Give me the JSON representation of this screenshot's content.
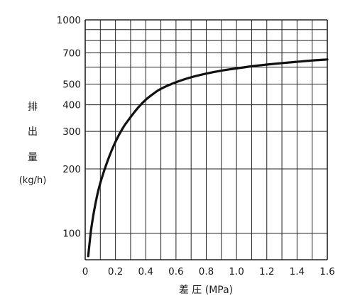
{
  "chart_data": {
    "type": "line",
    "x_scale": "linear",
    "y_scale": "log",
    "xlim": [
      0,
      1.6
    ],
    "ylim": [
      75,
      1000
    ],
    "x_ticks": [
      0,
      0.2,
      0.4,
      0.6,
      0.8,
      1.0,
      1.2,
      1.4,
      1.6
    ],
    "x_tick_labels": [
      "0",
      "0.2",
      "0.4",
      "0.6",
      "0.8",
      "1.0",
      "1.2",
      "1.4",
      "1.6"
    ],
    "x_minor_step": 0.1,
    "y_ticks": [
      100,
      200,
      300,
      400,
      500,
      700,
      1000
    ],
    "y_tick_labels": [
      "100",
      "200",
      "300",
      "400",
      "500",
      "700",
      "1000"
    ],
    "y_gridlines": [
      100,
      200,
      300,
      400,
      500,
      600,
      700,
      800,
      900,
      1000
    ],
    "ylabel_chars": [
      "排",
      "出",
      "量"
    ],
    "ylabel_unit": "(kg/h)",
    "xlabel": "差 圧 (MPa)",
    "grid": true,
    "series": [
      {
        "x": [
          0.02,
          0.04,
          0.07,
          0.1,
          0.15,
          0.2,
          0.25,
          0.3,
          0.35,
          0.4,
          0.45,
          0.5,
          0.6,
          0.7,
          0.8,
          0.9,
          1.0,
          1.1,
          1.2,
          1.3,
          1.4,
          1.5,
          1.6
        ],
        "y": [
          78,
          105,
          140,
          172,
          220,
          268,
          312,
          350,
          388,
          422,
          450,
          475,
          510,
          538,
          560,
          578,
          592,
          606,
          617,
          627,
          636,
          645,
          652
        ]
      }
    ],
    "colors": {
      "line": "#111111",
      "grid": "#222222",
      "text": "#1a1a1a"
    }
  }
}
